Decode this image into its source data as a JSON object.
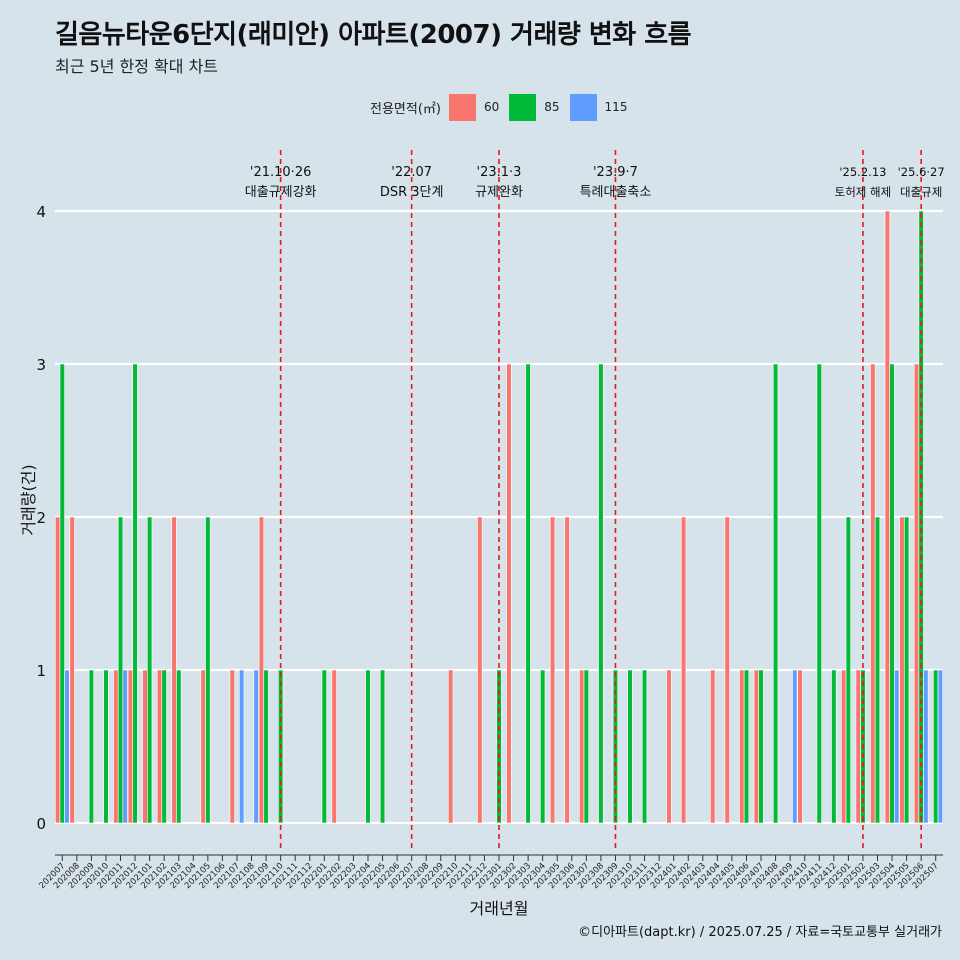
{
  "header": {
    "title": "길음뉴타운6단지(래미안) 아파트(2007) 거래량 변화 흐름",
    "subtitle": "최근 5년 한정 확대 차트"
  },
  "legend": {
    "title": "전용면적(㎡)",
    "items": [
      {
        "label": "60",
        "color": "#f8766d"
      },
      {
        "label": "85",
        "color": "#00ba38"
      },
      {
        "label": "115",
        "color": "#619cff"
      }
    ]
  },
  "caption": "©디아파트(dapt.kr) / 2025.07.25 / 자료=국토교통부 실거래가",
  "chart_data": {
    "type": "bar",
    "title": "길음뉴타운6단지(래미안) 아파트(2007) 거래량 변화 흐름",
    "subtitle": "최근 5년 한정 확대 차트",
    "xlabel": "거래년월",
    "ylabel": "거래량(건)",
    "ylim": [
      0,
      4
    ],
    "yticks": [
      0,
      1,
      2,
      3,
      4
    ],
    "grid": true,
    "legend_position": "top",
    "categories": [
      "202007",
      "202008",
      "202009",
      "202010",
      "202011",
      "202012",
      "202101",
      "202102",
      "202103",
      "202104",
      "202105",
      "202106",
      "202107",
      "202108",
      "202109",
      "202110",
      "202111",
      "202112",
      "202201",
      "202202",
      "202203",
      "202204",
      "202205",
      "202206",
      "202207",
      "202208",
      "202209",
      "202210",
      "202211",
      "202212",
      "202301",
      "202302",
      "202303",
      "202304",
      "202305",
      "202306",
      "202307",
      "202308",
      "202309",
      "202310",
      "202311",
      "202312",
      "202401",
      "202402",
      "202403",
      "202404",
      "202405",
      "202406",
      "202407",
      "202408",
      "202409",
      "202410",
      "202411",
      "202412",
      "202501",
      "202502",
      "202503",
      "202504",
      "202505",
      "202506",
      "202507"
    ],
    "series": [
      {
        "name": "60",
        "color": "#f8766d",
        "values": [
          2,
          2,
          0,
          0,
          1,
          1,
          1,
          1,
          2,
          0,
          1,
          0,
          1,
          0,
          2,
          0,
          0,
          0,
          0,
          1,
          0,
          0,
          0,
          0,
          0,
          0,
          0,
          1,
          0,
          2,
          0,
          3,
          0,
          0,
          2,
          2,
          1,
          0,
          0,
          0,
          0,
          0,
          1,
          2,
          0,
          1,
          2,
          1,
          1,
          0,
          0,
          1,
          0,
          0,
          1,
          1,
          3,
          4,
          2,
          3,
          0
        ]
      },
      {
        "name": "85",
        "color": "#00ba38",
        "values": [
          3,
          0,
          1,
          1,
          2,
          3,
          2,
          1,
          1,
          0,
          2,
          0,
          0,
          0,
          1,
          1,
          0,
          0,
          1,
          0,
          0,
          1,
          1,
          0,
          0,
          0,
          0,
          0,
          0,
          0,
          1,
          0,
          3,
          1,
          0,
          0,
          1,
          3,
          1,
          1,
          1,
          0,
          0,
          0,
          0,
          0,
          0,
          1,
          1,
          3,
          0,
          0,
          3,
          1,
          2,
          1,
          2,
          3,
          2,
          4,
          1
        ]
      },
      {
        "name": "115",
        "color": "#619cff",
        "values": [
          1,
          0,
          0,
          0,
          1,
          0,
          0,
          0,
          0,
          0,
          0,
          0,
          1,
          1,
          0,
          0,
          0,
          0,
          0,
          0,
          0,
          0,
          0,
          0,
          0,
          0,
          0,
          0,
          0,
          0,
          0,
          0,
          0,
          0,
          0,
          0,
          0,
          0,
          0,
          0,
          0,
          0,
          0,
          0,
          0,
          0,
          0,
          0,
          0,
          0,
          1,
          0,
          0,
          0,
          0,
          0,
          0,
          1,
          0,
          1,
          1
        ]
      }
    ],
    "annotations": [
      {
        "month": "202110",
        "date": "'21.10·26",
        "text": "대출규제강화"
      },
      {
        "month": "202207",
        "date": "'22.07",
        "text": "DSR 3단계"
      },
      {
        "month": "202301",
        "date": "'23.1·3",
        "text": "규제완화"
      },
      {
        "month": "202309",
        "date": "'23.9·7",
        "text": "특례대출축소"
      },
      {
        "month": "202502",
        "date": "'25.2.13",
        "text": "토허제 해제"
      },
      {
        "month": "202506",
        "date": "'25.6·27",
        "text": "대출규제"
      }
    ]
  }
}
